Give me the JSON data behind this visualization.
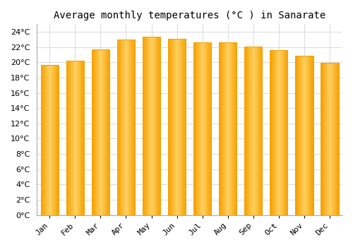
{
  "title": "Average monthly temperatures (°C ) in Sanarate",
  "months": [
    "Jan",
    "Feb",
    "Mar",
    "Apr",
    "May",
    "Jun",
    "Jul",
    "Aug",
    "Sep",
    "Oct",
    "Nov",
    "Dec"
  ],
  "values": [
    19.7,
    20.2,
    21.7,
    23.0,
    23.4,
    23.1,
    22.6,
    22.6,
    22.1,
    21.6,
    20.9,
    19.9
  ],
  "bar_color_center": "#FFD060",
  "bar_color_edge": "#F5A000",
  "background_color": "#FFFFFF",
  "plot_bg_color": "#FFFFFF",
  "ylim": [
    0,
    25
  ],
  "ytick_interval": 2,
  "title_fontsize": 10,
  "tick_fontsize": 8,
  "grid_color": "#DDDDDD",
  "grid_linewidth": 0.8,
  "bar_width": 0.7
}
